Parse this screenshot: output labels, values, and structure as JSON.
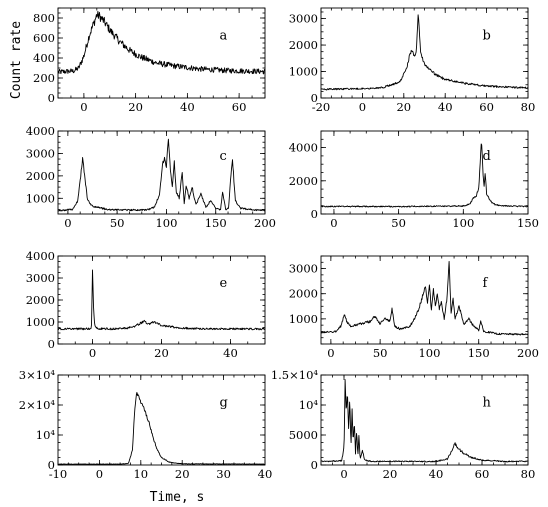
{
  "figure": {
    "ylabel": "Count rate",
    "xlabel": "Time, s"
  },
  "chart_data": [
    {
      "type": "line",
      "label": "a",
      "xlim": [
        -10,
        70
      ],
      "ylim": [
        0,
        900
      ],
      "xticks": [
        0,
        20,
        40,
        60
      ],
      "xticklabels": [
        "0",
        "20",
        "40",
        "60"
      ],
      "yticks": [
        0,
        200,
        400,
        600,
        800
      ],
      "yticklabels": [
        "0",
        "200",
        "400",
        "600",
        "800"
      ],
      "x": [
        -10,
        -4,
        -2,
        0,
        2,
        4,
        5,
        6,
        8,
        10,
        14,
        18,
        22,
        28,
        35,
        45,
        55,
        70
      ],
      "y": [
        260,
        270,
        300,
        420,
        620,
        760,
        830,
        820,
        760,
        680,
        560,
        470,
        410,
        350,
        320,
        290,
        275,
        265
      ]
    },
    {
      "type": "line",
      "label": "b",
      "xlim": [
        -20,
        80
      ],
      "ylim": [
        0,
        3400
      ],
      "xticks": [
        -20,
        0,
        20,
        40,
        60,
        80
      ],
      "xticklabels": [
        "-20",
        "0",
        "20",
        "40",
        "60",
        "80"
      ],
      "yticks": [
        0,
        1000,
        2000,
        3000
      ],
      "yticklabels": [
        "0",
        "1000",
        "2000",
        "3000"
      ],
      "x": [
        -20,
        0,
        10,
        18,
        20,
        22,
        23,
        24,
        25,
        26,
        27,
        28,
        29,
        30,
        32,
        35,
        40,
        50,
        60,
        80
      ],
      "y": [
        330,
        350,
        400,
        600,
        900,
        1300,
        1700,
        1800,
        1600,
        1700,
        3200,
        1800,
        1500,
        1300,
        1100,
        900,
        700,
        550,
        450,
        380
      ]
    },
    {
      "type": "line",
      "label": "c",
      "xlim": [
        -10,
        200
      ],
      "ylim": [
        300,
        4000
      ],
      "xticks": [
        0,
        50,
        100,
        150,
        200
      ],
      "xticklabels": [
        "0",
        "50",
        "100",
        "150",
        "200"
      ],
      "yticks": [
        1000,
        2000,
        3000,
        4000
      ],
      "yticklabels": [
        "1000",
        "2000",
        "3000",
        "4000"
      ],
      "x": [
        -10,
        5,
        10,
        13,
        15,
        17,
        20,
        25,
        40,
        60,
        80,
        88,
        93,
        96,
        98,
        100,
        102,
        104,
        106,
        108,
        110,
        113,
        116,
        118,
        120,
        123,
        126,
        130,
        135,
        140,
        145,
        150,
        155,
        157,
        160,
        163,
        165,
        167,
        170,
        175,
        190,
        200
      ],
      "y": [
        450,
        500,
        900,
        2000,
        2800,
        2000,
        900,
        650,
        500,
        480,
        480,
        600,
        1200,
        2500,
        2800,
        2400,
        3700,
        2200,
        1500,
        2600,
        1300,
        1000,
        2200,
        800,
        1600,
        1000,
        1500,
        700,
        1200,
        600,
        900,
        550,
        500,
        1300,
        500,
        550,
        1800,
        2700,
        900,
        550,
        480,
        470
      ]
    },
    {
      "type": "line",
      "label": "d",
      "xlim": [
        -10,
        150
      ],
      "ylim": [
        0,
        5000
      ],
      "xticks": [
        0,
        50,
        100,
        150
      ],
      "xticklabels": [
        "0",
        "50",
        "100",
        "150"
      ],
      "yticks": [
        0,
        2000,
        4000
      ],
      "yticklabels": [
        "0",
        "2000",
        "4000"
      ],
      "x": [
        -10,
        0,
        50,
        100,
        105,
        108,
        110,
        112,
        113,
        114,
        115,
        116,
        117,
        118,
        120,
        122,
        125,
        130,
        140,
        150
      ],
      "y": [
        450,
        460,
        450,
        480,
        600,
        1000,
        1100,
        1600,
        3000,
        4600,
        2800,
        1600,
        2500,
        1200,
        900,
        700,
        550,
        500,
        470,
        460
      ]
    },
    {
      "type": "line",
      "label": "e",
      "xlim": [
        -10,
        50
      ],
      "ylim": [
        0,
        4000
      ],
      "xticks": [
        0,
        20,
        40
      ],
      "xticklabels": [
        "0",
        "20",
        "40"
      ],
      "yticks": [
        0,
        1000,
        2000,
        3000,
        4000
      ],
      "yticklabels": [
        "0",
        "1000",
        "2000",
        "3000",
        "4000"
      ],
      "x": [
        -10,
        -1,
        -0.3,
        0,
        0.3,
        0.6,
        1,
        2,
        5,
        10,
        12,
        14,
        15,
        16,
        18,
        20,
        22,
        25,
        30,
        40,
        50
      ],
      "y": [
        680,
        690,
        700,
        3400,
        1600,
        900,
        750,
        700,
        680,
        720,
        800,
        950,
        1050,
        900,
        1000,
        850,
        800,
        740,
        700,
        690,
        680
      ]
    },
    {
      "type": "line",
      "label": "f",
      "xlim": [
        -10,
        200
      ],
      "ylim": [
        0,
        3500
      ],
      "xticks": [
        0,
        50,
        100,
        150,
        200
      ],
      "xticklabels": [
        "0",
        "50",
        "100",
        "150",
        "200"
      ],
      "yticks": [
        1000,
        2000,
        3000
      ],
      "yticklabels": [
        "1000",
        "2000",
        "3000"
      ],
      "x": [
        -10,
        5,
        10,
        14,
        16,
        20,
        30,
        40,
        45,
        50,
        55,
        60,
        62,
        65,
        70,
        80,
        85,
        90,
        93,
        96,
        98,
        100,
        102,
        104,
        106,
        108,
        110,
        112,
        115,
        118,
        120,
        122,
        124,
        126,
        130,
        135,
        140,
        145,
        150,
        152,
        155,
        170,
        200
      ],
      "y": [
        450,
        500,
        700,
        1200,
        900,
        700,
        800,
        900,
        1100,
        800,
        1000,
        900,
        1400,
        700,
        600,
        700,
        1000,
        1500,
        1900,
        2300,
        1600,
        2400,
        1300,
        2200,
        1500,
        2000,
        1400,
        1700,
        1000,
        1900,
        3300,
        1200,
        1800,
        1000,
        1500,
        800,
        1000,
        700,
        550,
        900,
        500,
        400,
        380
      ]
    },
    {
      "type": "line",
      "label": "g",
      "xlim": [
        -10,
        40
      ],
      "ylim": [
        0,
        30000
      ],
      "xticks": [
        -10,
        0,
        10,
        20,
        30,
        40
      ],
      "xticklabels": [
        "-10",
        "0",
        "10",
        "20",
        "30",
        "40"
      ],
      "yticks": [
        0,
        10000,
        20000,
        30000
      ],
      "yticklabels": [
        "0",
        "10⁴",
        "2×10⁴",
        "3×10⁴"
      ],
      "x": [
        -10,
        5,
        7,
        8,
        8.5,
        9,
        9.5,
        10,
        11,
        12,
        13,
        14,
        15,
        17,
        20,
        40
      ],
      "y": [
        300,
        300,
        500,
        5000,
        18000,
        24000,
        23000,
        21000,
        18000,
        14000,
        9000,
        5000,
        2500,
        900,
        400,
        300
      ]
    },
    {
      "type": "line",
      "label": "h",
      "xlim": [
        -10,
        80
      ],
      "ylim": [
        0,
        15000
      ],
      "xticks": [
        0,
        20,
        40,
        60,
        80
      ],
      "xticklabels": [
        "0",
        "20",
        "40",
        "60",
        "80"
      ],
      "yticks": [
        0,
        5000,
        10000,
        15000
      ],
      "yticklabels": [
        "0",
        "5000",
        "10⁴",
        "1.5×10⁴"
      ],
      "x": [
        -10,
        -1,
        0,
        0.5,
        1,
        1.5,
        2,
        2.5,
        3,
        3.5,
        4,
        4.5,
        5,
        5.5,
        6,
        6.5,
        7,
        8,
        9,
        12,
        20,
        40,
        45,
        47,
        48,
        49,
        50,
        52,
        55,
        60,
        70,
        80
      ],
      "y": [
        600,
        700,
        3000,
        14000,
        9000,
        12000,
        6000,
        11000,
        3000,
        9000,
        4000,
        7000,
        2000,
        6000,
        1500,
        5000,
        1000,
        2500,
        800,
        600,
        600,
        600,
        1000,
        2500,
        3600,
        3200,
        2600,
        2000,
        1300,
        800,
        600,
        600
      ]
    }
  ]
}
